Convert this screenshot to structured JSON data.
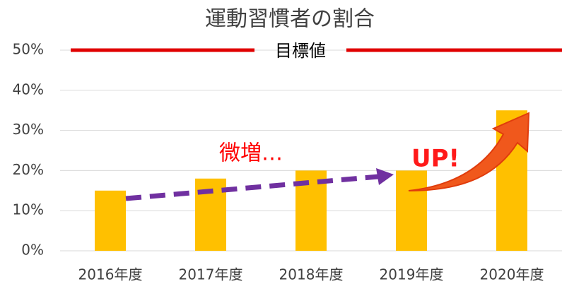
{
  "chart_data": {
    "type": "bar",
    "title": "運動習慣者の割合",
    "categories": [
      "2016年度",
      "2017年度",
      "2018年度",
      "2019年度",
      "2020年度"
    ],
    "values": [
      15,
      18,
      20,
      20,
      35
    ],
    "color": "#ffc000",
    "ylim": [
      0,
      50
    ],
    "yticks": [
      {
        "value": 0,
        "label": "0%"
      },
      {
        "value": 10,
        "label": "10%"
      },
      {
        "value": 20,
        "label": "20%"
      },
      {
        "value": 30,
        "label": "30%"
      },
      {
        "value": 40,
        "label": "40%"
      },
      {
        "value": 50,
        "label": "50%"
      }
    ],
    "grid": true,
    "target": {
      "label": "目標値",
      "value": 50,
      "color": "#e00000"
    },
    "annotations": [
      "微増…",
      "UP!"
    ]
  }
}
